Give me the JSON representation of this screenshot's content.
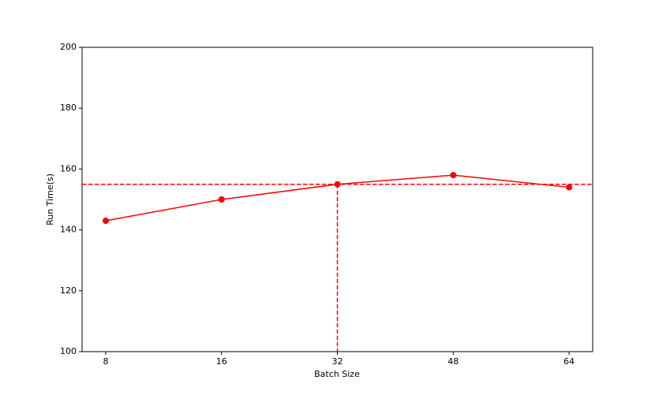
{
  "chart_data": {
    "type": "line",
    "x_label": "Batch Size",
    "y_label": "Run Time(s)",
    "categories": [
      "8",
      "16",
      "32",
      "48",
      "64"
    ],
    "series": [
      {
        "name": "Run Time",
        "color": "#ff0000",
        "values": [
          143,
          150,
          155,
          158,
          154
        ]
      }
    ],
    "ylim": [
      100,
      200
    ],
    "yticks": [
      100,
      120,
      140,
      160,
      180,
      200
    ],
    "hline": 155,
    "vline": "32",
    "reference_color": "#ff0000",
    "marker": "circle"
  }
}
